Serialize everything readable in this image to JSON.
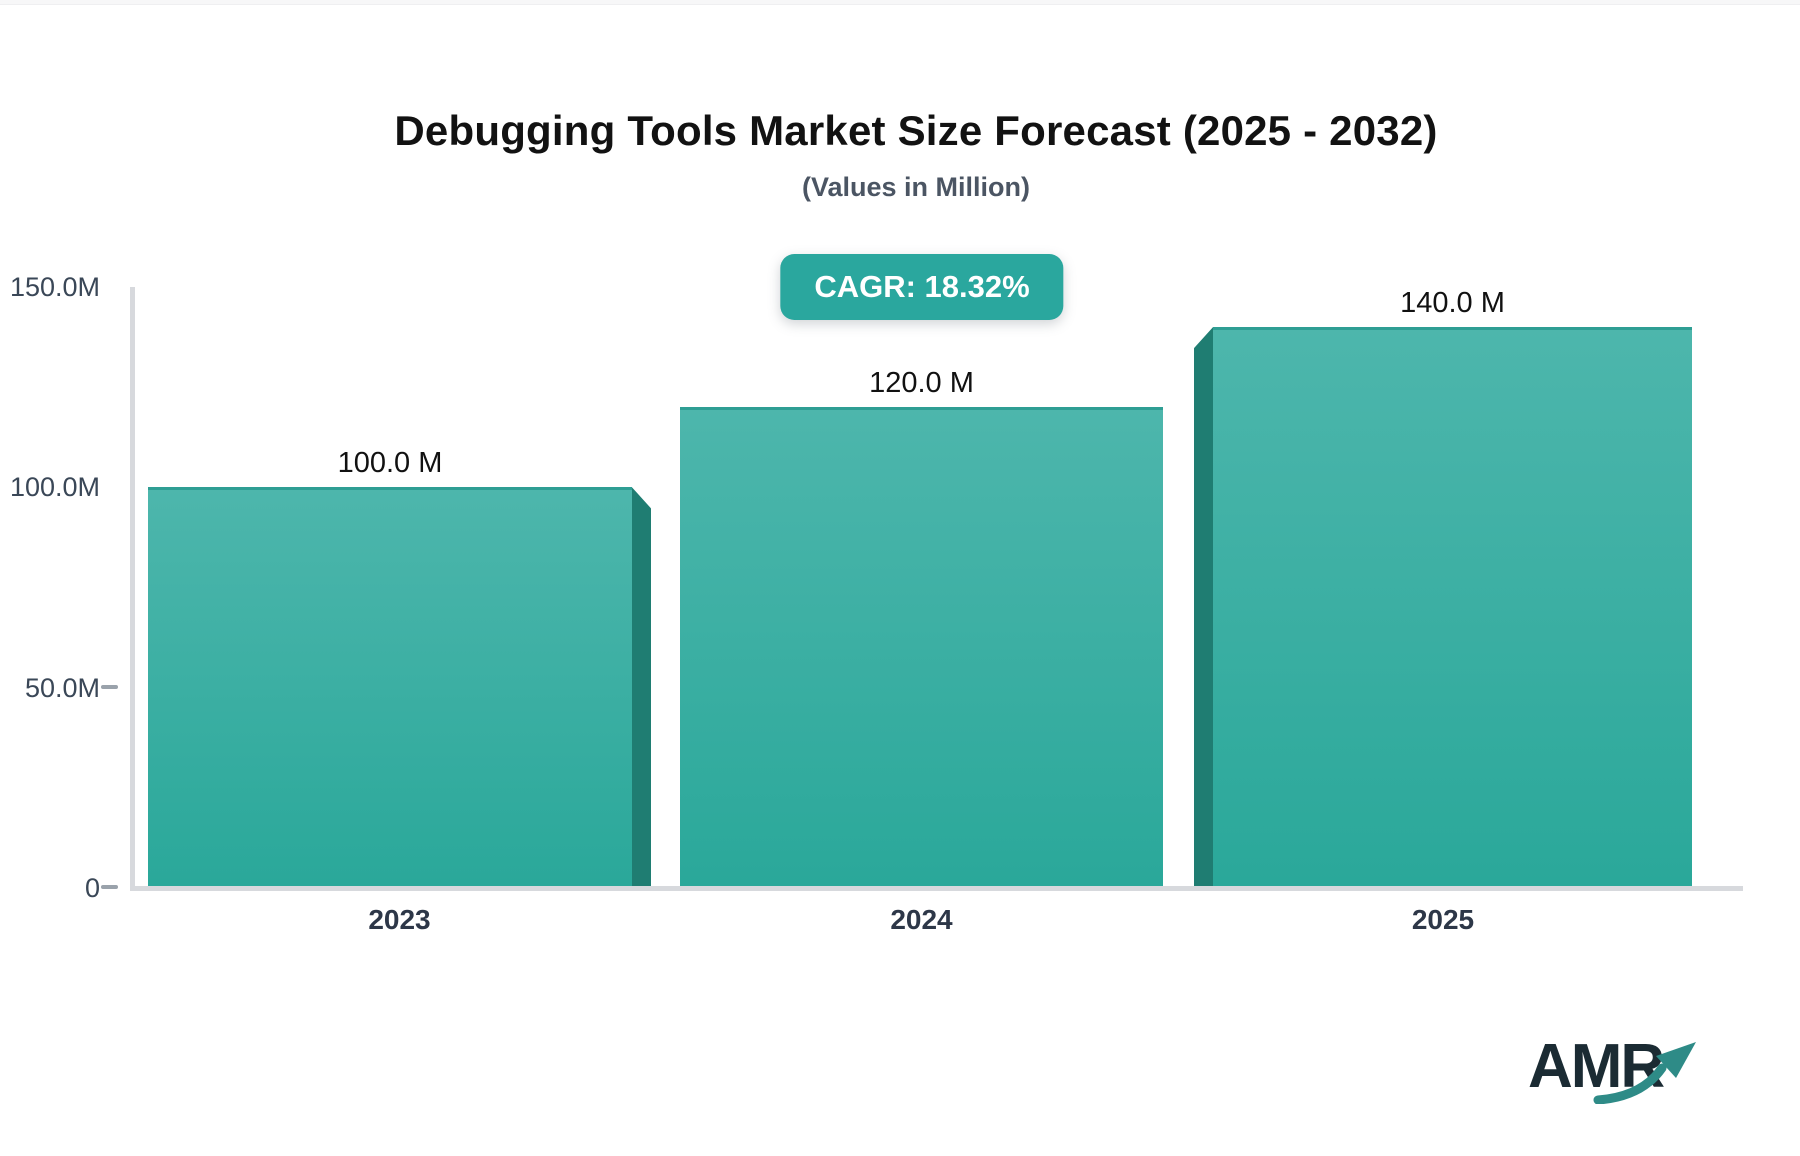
{
  "theme": {
    "accent": "#2aa79e",
    "badge_text_color": "#ffffff",
    "bar_gradient_top": "#4db6ac",
    "bar_gradient_bottom": "#2aa89a",
    "bar_top_edge": "#2f9e94",
    "bar_side_face": "#1f7d72",
    "axis_line_color": "#d7d9dd",
    "tick_dash_color": "#9aa2ab",
    "title_color": "#121212",
    "subtitle_color": "#4b5563",
    "axis_label_color": "#3a4757",
    "category_label_color": "#2d3748",
    "value_label_color": "#111111",
    "logo_text_color": "#1b2b33",
    "logo_arrow_color": "#2e8b87"
  },
  "header": {
    "title": "Debugging Tools Market Size Forecast (2025 - 2032)",
    "subtitle": "(Values in Million)"
  },
  "cagr": {
    "label": "CAGR: 18.32%"
  },
  "chart_data": {
    "type": "bar",
    "title": "Debugging Tools Market Size Forecast (2025 - 2032)",
    "subtitle": "(Values in Million)",
    "unit": "Million",
    "categories": [
      "2023",
      "2024",
      "2025"
    ],
    "values": [
      100.0,
      120.0,
      140.0
    ],
    "value_labels": [
      "100.0 M",
      "120.0 M",
      "140.0 M"
    ],
    "ylim": [
      0,
      150
    ],
    "yticks": [
      {
        "value": 150,
        "label": "150.0M",
        "dash": false
      },
      {
        "value": 100,
        "label": "100.0M",
        "dash": false
      },
      {
        "value": 50,
        "label": "50.0M",
        "dash": true
      },
      {
        "value": 0,
        "label": "0",
        "dash": true
      }
    ],
    "grid": false,
    "legend": null,
    "annotations": [
      "CAGR: 18.32%"
    ]
  },
  "logo": {
    "text": "AMR"
  }
}
